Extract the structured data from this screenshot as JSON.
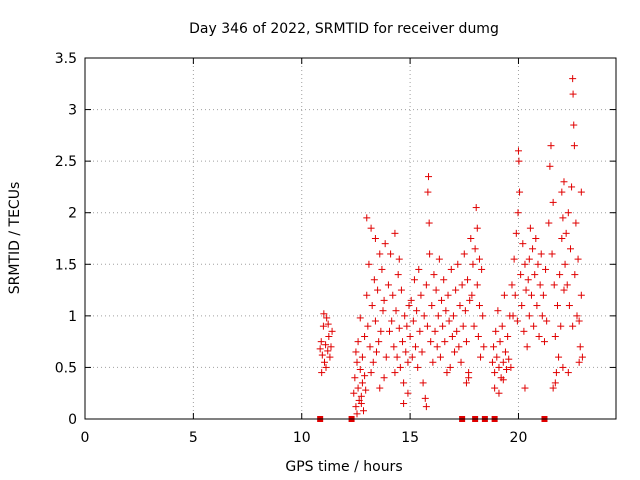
{
  "chart_data": {
    "type": "scatter",
    "title": "Day 346 of 2022, SRMTID for receiver dumg",
    "xlabel": "GPS time / hours",
    "ylabel": "SRMTID / TECUs",
    "xlim": [
      0,
      24.5
    ],
    "ylim": [
      0,
      3.5
    ],
    "x_ticks": [
      0,
      5,
      10,
      15,
      20
    ],
    "y_ticks": [
      0,
      0.5,
      1,
      1.5,
      2,
      2.5,
      3,
      3.5
    ],
    "x_tick_labels": [
      "0",
      "5",
      "10",
      "15",
      "20"
    ],
    "y_tick_labels": [
      "0",
      "0.5",
      "1",
      "1.5",
      "2",
      "2.5",
      "3",
      "3.5"
    ],
    "grid": true,
    "point_color": "#e00000",
    "series": [
      {
        "marker": "plus",
        "points": [
          [
            10.85,
            0.68
          ],
          [
            10.9,
            0.75
          ],
          [
            10.95,
            0.62
          ],
          [
            11.0,
            0.9
          ],
          [
            11.05,
            0.55
          ],
          [
            11.1,
            0.72
          ],
          [
            11.15,
            0.98
          ],
          [
            11.2,
            0.66
          ],
          [
            11.25,
            0.8
          ],
          [
            11.3,
            0.6
          ],
          [
            11.35,
            0.7
          ],
          [
            11.4,
            0.85
          ],
          [
            10.92,
            0.45
          ],
          [
            11.02,
            1.02
          ],
          [
            11.12,
            0.5
          ],
          [
            11.22,
            0.92
          ],
          [
            12.4,
            0.25
          ],
          [
            12.45,
            0.4
          ],
          [
            12.5,
            0.12
          ],
          [
            12.55,
            0.55
          ],
          [
            12.6,
            0.3
          ],
          [
            12.65,
            0.18
          ],
          [
            12.7,
            0.48
          ],
          [
            12.75,
            0.22
          ],
          [
            12.8,
            0.35
          ],
          [
            12.85,
            0.08
          ],
          [
            12.9,
            0.42
          ],
          [
            12.95,
            0.28
          ],
          [
            12.5,
            0.65
          ],
          [
            12.6,
            0.75
          ],
          [
            12.7,
            0.98
          ],
          [
            12.8,
            0.6
          ],
          [
            12.55,
            0.05
          ],
          [
            12.75,
            0.15
          ],
          [
            12.9,
            0.8
          ],
          [
            13.0,
            1.2
          ],
          [
            13.05,
            0.9
          ],
          [
            13.1,
            1.5
          ],
          [
            13.15,
            0.7
          ],
          [
            13.2,
            1.85
          ],
          [
            13.25,
            1.1
          ],
          [
            13.3,
            0.55
          ],
          [
            13.35,
            1.35
          ],
          [
            13.4,
            0.95
          ],
          [
            13.45,
            0.65
          ],
          [
            13.5,
            1.25
          ],
          [
            13.55,
            0.75
          ],
          [
            13.6,
            1.6
          ],
          [
            13.65,
            0.85
          ],
          [
            13.7,
            1.45
          ],
          [
            13.75,
            1.05
          ],
          [
            13.8,
            0.4
          ],
          [
            13.85,
            1.7
          ],
          [
            13.9,
            0.6
          ],
          [
            13.0,
            1.95
          ],
          [
            13.2,
            0.45
          ],
          [
            13.4,
            1.75
          ],
          [
            13.6,
            0.3
          ],
          [
            13.8,
            1.15
          ],
          [
            14.0,
            1.3
          ],
          [
            14.05,
            0.85
          ],
          [
            14.1,
            1.6
          ],
          [
            14.15,
            0.95
          ],
          [
            14.2,
            1.2
          ],
          [
            14.25,
            0.7
          ],
          [
            14.3,
            1.8
          ],
          [
            14.35,
            1.05
          ],
          [
            14.4,
            0.6
          ],
          [
            14.45,
            1.4
          ],
          [
            14.5,
            0.88
          ],
          [
            14.55,
            0.5
          ],
          [
            14.6,
            1.25
          ],
          [
            14.65,
            0.75
          ],
          [
            14.7,
            0.35
          ],
          [
            14.75,
            1.0
          ],
          [
            14.8,
            0.65
          ],
          [
            14.85,
            0.9
          ],
          [
            14.9,
            0.55
          ],
          [
            14.95,
            1.1
          ],
          [
            14.3,
            0.45
          ],
          [
            14.5,
            1.55
          ],
          [
            14.7,
            0.15
          ],
          [
            14.9,
            0.25
          ],
          [
            15.0,
            0.8
          ],
          [
            15.05,
            1.15
          ],
          [
            15.1,
            0.6
          ],
          [
            15.15,
            0.95
          ],
          [
            15.2,
            1.35
          ],
          [
            15.25,
            0.7
          ],
          [
            15.3,
            1.05
          ],
          [
            15.35,
            0.5
          ],
          [
            15.4,
            1.45
          ],
          [
            15.45,
            0.85
          ],
          [
            15.5,
            1.2
          ],
          [
            15.55,
            0.65
          ],
          [
            15.6,
            0.35
          ],
          [
            15.65,
            1.0
          ],
          [
            15.7,
            0.2
          ],
          [
            15.75,
            1.3
          ],
          [
            15.8,
            0.9
          ],
          [
            15.85,
            2.35
          ],
          [
            15.9,
            1.6
          ],
          [
            15.95,
            0.75
          ],
          [
            15.82,
            2.2
          ],
          [
            15.88,
            1.9
          ],
          [
            15.75,
            0.12
          ],
          [
            16.0,
            1.1
          ],
          [
            16.05,
            0.55
          ],
          [
            16.1,
            1.4
          ],
          [
            16.15,
            0.85
          ],
          [
            16.2,
            1.25
          ],
          [
            16.25,
            0.7
          ],
          [
            16.3,
            1.0
          ],
          [
            16.35,
            1.55
          ],
          [
            16.4,
            0.6
          ],
          [
            16.45,
            1.15
          ],
          [
            16.5,
            0.9
          ],
          [
            16.55,
            1.35
          ],
          [
            16.6,
            0.75
          ],
          [
            16.65,
            1.05
          ],
          [
            16.7,
            0.45
          ],
          [
            16.75,
            1.2
          ],
          [
            16.8,
            0.95
          ],
          [
            16.85,
            0.5
          ],
          [
            16.9,
            1.45
          ],
          [
            16.95,
            0.8
          ],
          [
            17.0,
            1.0
          ],
          [
            17.05,
            0.65
          ],
          [
            17.1,
            1.25
          ],
          [
            17.15,
            0.85
          ],
          [
            17.2,
            1.5
          ],
          [
            17.25,
            0.7
          ],
          [
            17.3,
            1.1
          ],
          [
            17.35,
            0.55
          ],
          [
            17.4,
            1.3
          ],
          [
            17.45,
            0.9
          ],
          [
            17.5,
            1.6
          ],
          [
            17.55,
            1.05
          ],
          [
            17.6,
            0.75
          ],
          [
            17.65,
            1.35
          ],
          [
            17.7,
            0.45
          ],
          [
            17.75,
            1.15
          ],
          [
            17.6,
            0.35
          ],
          [
            17.7,
            0.4
          ],
          [
            17.8,
            1.75
          ],
          [
            17.85,
            1.2
          ],
          [
            17.9,
            1.5
          ],
          [
            17.95,
            0.9
          ],
          [
            18.0,
            1.65
          ],
          [
            18.05,
            2.05
          ],
          [
            18.1,
            1.3
          ],
          [
            18.15,
            0.8
          ],
          [
            18.2,
            1.1
          ],
          [
            18.25,
            0.6
          ],
          [
            18.3,
            1.45
          ],
          [
            18.35,
            1.0
          ],
          [
            18.4,
            0.7
          ],
          [
            18.1,
            1.85
          ],
          [
            18.2,
            1.55
          ],
          [
            18.8,
            0.55
          ],
          [
            18.85,
            0.7
          ],
          [
            18.9,
            0.45
          ],
          [
            18.95,
            0.85
          ],
          [
            19.0,
            0.6
          ],
          [
            19.05,
            1.05
          ],
          [
            19.1,
            0.5
          ],
          [
            19.15,
            0.75
          ],
          [
            19.2,
            0.4
          ],
          [
            19.25,
            0.9
          ],
          [
            19.3,
            0.55
          ],
          [
            19.35,
            1.2
          ],
          [
            19.4,
            0.65
          ],
          [
            19.45,
            0.48
          ],
          [
            19.5,
            0.8
          ],
          [
            19.55,
            0.58
          ],
          [
            19.6,
            1.0
          ],
          [
            19.65,
            0.5
          ],
          [
            18.9,
            0.3
          ],
          [
            19.1,
            0.25
          ],
          [
            19.3,
            0.38
          ],
          [
            19.7,
            1.3
          ],
          [
            19.75,
            1.0
          ],
          [
            19.8,
            1.55
          ],
          [
            19.85,
            1.2
          ],
          [
            19.9,
            1.8
          ],
          [
            19.95,
            0.95
          ],
          [
            20.0,
            2.6
          ],
          [
            20.02,
            2.5
          ],
          [
            20.05,
            2.2
          ],
          [
            20.1,
            1.4
          ],
          [
            20.15,
            1.1
          ],
          [
            20.2,
            1.7
          ],
          [
            20.25,
            0.85
          ],
          [
            20.3,
            1.5
          ],
          [
            20.35,
            1.25
          ],
          [
            20.4,
            0.7
          ],
          [
            20.45,
            1.35
          ],
          [
            20.5,
            1.0
          ],
          [
            19.98,
            2.0
          ],
          [
            20.3,
            0.3
          ],
          [
            20.5,
            1.55
          ],
          [
            20.55,
            1.85
          ],
          [
            20.6,
            1.2
          ],
          [
            20.65,
            1.65
          ],
          [
            20.7,
            0.9
          ],
          [
            20.75,
            1.4
          ],
          [
            20.8,
            1.75
          ],
          [
            20.85,
            1.1
          ],
          [
            20.9,
            1.5
          ],
          [
            20.95,
            0.8
          ],
          [
            21.0,
            1.3
          ],
          [
            21.05,
            1.6
          ],
          [
            21.1,
            1.0
          ],
          [
            21.15,
            1.2
          ],
          [
            21.2,
            0.75
          ],
          [
            21.25,
            1.45
          ],
          [
            21.3,
            0.95
          ],
          [
            21.4,
            1.9
          ],
          [
            21.45,
            2.45
          ],
          [
            21.5,
            2.65
          ],
          [
            21.55,
            1.6
          ],
          [
            21.6,
            2.1
          ],
          [
            21.65,
            1.3
          ],
          [
            21.7,
            0.8
          ],
          [
            21.75,
            0.45
          ],
          [
            21.8,
            1.1
          ],
          [
            21.85,
            0.6
          ],
          [
            21.9,
            1.4
          ],
          [
            21.95,
            0.9
          ],
          [
            22.0,
            1.75
          ],
          [
            22.05,
            0.5
          ],
          [
            22.1,
            1.25
          ],
          [
            21.6,
            0.3
          ],
          [
            21.7,
            0.35
          ],
          [
            22.0,
            2.2
          ],
          [
            22.05,
            1.95
          ],
          [
            22.1,
            2.3
          ],
          [
            22.15,
            1.5
          ],
          [
            22.2,
            1.8
          ],
          [
            22.25,
            1.3
          ],
          [
            22.3,
            2.0
          ],
          [
            22.35,
            1.1
          ],
          [
            22.4,
            1.65
          ],
          [
            22.45,
            2.25
          ],
          [
            22.5,
            3.3
          ],
          [
            22.52,
            3.15
          ],
          [
            22.55,
            2.85
          ],
          [
            22.58,
            2.65
          ],
          [
            22.6,
            1.4
          ],
          [
            22.65,
            1.9
          ],
          [
            22.7,
            1.0
          ],
          [
            22.75,
            1.55
          ],
          [
            22.8,
            0.95
          ],
          [
            22.85,
            0.7
          ],
          [
            22.9,
            1.2
          ],
          [
            22.95,
            0.6
          ],
          [
            22.8,
            0.55
          ],
          [
            22.9,
            2.2
          ],
          [
            22.3,
            0.45
          ],
          [
            22.5,
            0.9
          ]
        ]
      },
      {
        "marker": "square",
        "points": [
          [
            10.85,
            0.0
          ],
          [
            12.3,
            0.0
          ],
          [
            17.4,
            0.0
          ],
          [
            18.0,
            0.0
          ],
          [
            18.45,
            0.0
          ],
          [
            18.9,
            0.0
          ],
          [
            21.2,
            0.0
          ]
        ]
      }
    ]
  }
}
